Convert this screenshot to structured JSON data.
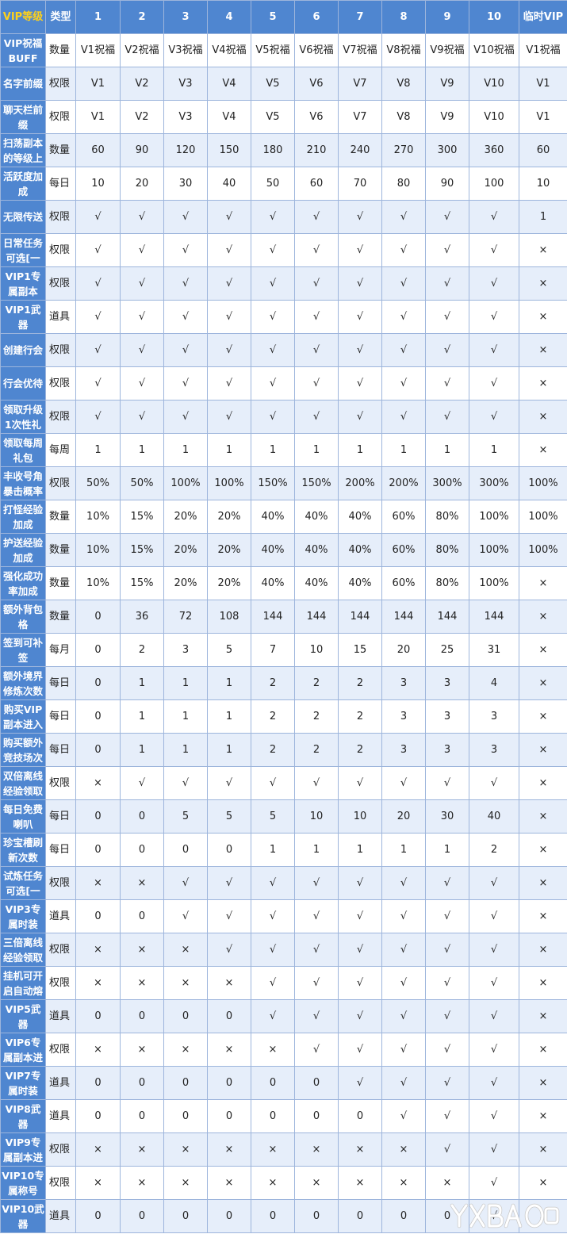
{
  "header": [
    "VIP等级",
    "类型",
    "1",
    "2",
    "3",
    "4",
    "5",
    "6",
    "7",
    "8",
    "9",
    "10",
    "临时VIP"
  ],
  "colors": {
    "header_bg": "#4f86d0",
    "header_first_text": "#ffd11a",
    "row_alt": "#e6eefa",
    "border": "#9db5dc"
  },
  "rows": [
    {
      "name": "VIP祝福BUFF",
      "type": "数量",
      "values": [
        "V1祝福",
        "V2祝福",
        "V3祝福",
        "V4祝福",
        "V5祝福",
        "V6祝福",
        "V7祝福",
        "V8祝福",
        "V9祝福",
        "V10祝福",
        "V1祝福"
      ]
    },
    {
      "name": "名字前缀",
      "type": "权限",
      "values": [
        "V1",
        "V2",
        "V3",
        "V4",
        "V5",
        "V6",
        "V7",
        "V8",
        "V9",
        "V10",
        "V1"
      ]
    },
    {
      "name": "聊天栏前缀",
      "type": "权限",
      "values": [
        "V1",
        "V2",
        "V3",
        "V4",
        "V5",
        "V6",
        "V7",
        "V8",
        "V9",
        "V10",
        "V1"
      ]
    },
    {
      "name": "扫荡副本的等级上",
      "type": "数量",
      "values": [
        "60",
        "90",
        "120",
        "150",
        "180",
        "210",
        "240",
        "270",
        "300",
        "360",
        "60"
      ]
    },
    {
      "name": "活跃度加成",
      "type": "每日",
      "values": [
        "10",
        "20",
        "30",
        "40",
        "50",
        "60",
        "70",
        "80",
        "90",
        "100",
        "10"
      ]
    },
    {
      "name": "无限传送",
      "type": "权限",
      "values": [
        "√",
        "√",
        "√",
        "√",
        "√",
        "√",
        "√",
        "√",
        "√",
        "√",
        "1"
      ]
    },
    {
      "name": "日常任务可选[一",
      "type": "权限",
      "values": [
        "√",
        "√",
        "√",
        "√",
        "√",
        "√",
        "√",
        "√",
        "√",
        "√",
        "×"
      ]
    },
    {
      "name": "VIP1专属副本",
      "type": "权限",
      "values": [
        "√",
        "√",
        "√",
        "√",
        "√",
        "√",
        "√",
        "√",
        "√",
        "√",
        "×"
      ]
    },
    {
      "name": "VIP1武器",
      "type": "道具",
      "values": [
        "√",
        "√",
        "√",
        "√",
        "√",
        "√",
        "√",
        "√",
        "√",
        "√",
        "×"
      ]
    },
    {
      "name": "创建行会",
      "type": "权限",
      "values": [
        "√",
        "√",
        "√",
        "√",
        "√",
        "√",
        "√",
        "√",
        "√",
        "√",
        "×"
      ]
    },
    {
      "name": "行会优待",
      "type": "权限",
      "values": [
        "√",
        "√",
        "√",
        "√",
        "√",
        "√",
        "√",
        "√",
        "√",
        "√",
        "×"
      ]
    },
    {
      "name": "领取升级1次性礼",
      "type": "权限",
      "values": [
        "√",
        "√",
        "√",
        "√",
        "√",
        "√",
        "√",
        "√",
        "√",
        "√",
        "×"
      ]
    },
    {
      "name": "领取每周礼包",
      "type": "每周",
      "values": [
        "1",
        "1",
        "1",
        "1",
        "1",
        "1",
        "1",
        "1",
        "1",
        "1",
        "×"
      ]
    },
    {
      "name": "丰收号角暴击概率",
      "type": "权限",
      "values": [
        "50%",
        "50%",
        "100%",
        "100%",
        "150%",
        "150%",
        "200%",
        "200%",
        "300%",
        "300%",
        "100%"
      ]
    },
    {
      "name": "打怪经验加成",
      "type": "数量",
      "values": [
        "10%",
        "15%",
        "20%",
        "20%",
        "40%",
        "40%",
        "40%",
        "60%",
        "80%",
        "100%",
        "100%"
      ]
    },
    {
      "name": "护送经验加成",
      "type": "数量",
      "values": [
        "10%",
        "15%",
        "20%",
        "20%",
        "40%",
        "40%",
        "40%",
        "60%",
        "80%",
        "100%",
        "100%"
      ]
    },
    {
      "name": "强化成功率加成",
      "type": "数量",
      "values": [
        "10%",
        "15%",
        "20%",
        "20%",
        "40%",
        "40%",
        "40%",
        "60%",
        "80%",
        "100%",
        "×"
      ]
    },
    {
      "name": "额外背包格",
      "type": "数量",
      "values": [
        "0",
        "36",
        "72",
        "108",
        "144",
        "144",
        "144",
        "144",
        "144",
        "144",
        "×"
      ]
    },
    {
      "name": "签到可补签",
      "type": "每月",
      "values": [
        "0",
        "2",
        "3",
        "5",
        "7",
        "10",
        "15",
        "20",
        "25",
        "31",
        "×"
      ]
    },
    {
      "name": "额外境界修炼次数",
      "type": "每日",
      "values": [
        "0",
        "1",
        "1",
        "1",
        "2",
        "2",
        "2",
        "3",
        "3",
        "4",
        "×"
      ]
    },
    {
      "name": "购买VIP副本进入",
      "type": "每日",
      "values": [
        "0",
        "1",
        "1",
        "1",
        "2",
        "2",
        "2",
        "3",
        "3",
        "3",
        "×"
      ]
    },
    {
      "name": "购买额外竞技场次",
      "type": "每日",
      "values": [
        "0",
        "1",
        "1",
        "1",
        "2",
        "2",
        "2",
        "3",
        "3",
        "3",
        "×"
      ]
    },
    {
      "name": "双倍离线经验领取",
      "type": "权限",
      "values": [
        "×",
        "√",
        "√",
        "√",
        "√",
        "√",
        "√",
        "√",
        "√",
        "√",
        "×"
      ]
    },
    {
      "name": "每日免费喇叭",
      "type": "每日",
      "values": [
        "0",
        "0",
        "5",
        "5",
        "5",
        "10",
        "10",
        "20",
        "30",
        "40",
        "×"
      ]
    },
    {
      "name": "珍宝槽刷新次数",
      "type": "每日",
      "values": [
        "0",
        "0",
        "0",
        "0",
        "1",
        "1",
        "1",
        "1",
        "1",
        "2",
        "×"
      ]
    },
    {
      "name": "试炼任务可选[一",
      "type": "权限",
      "values": [
        "×",
        "×",
        "√",
        "√",
        "√",
        "√",
        "√",
        "√",
        "√",
        "√",
        "×"
      ]
    },
    {
      "name": "VIP3专属时装",
      "type": "道具",
      "values": [
        "0",
        "0",
        "√",
        "√",
        "√",
        "√",
        "√",
        "√",
        "√",
        "√",
        "×"
      ]
    },
    {
      "name": "三倍离线经验领取",
      "type": "权限",
      "values": [
        "×",
        "×",
        "×",
        "√",
        "√",
        "√",
        "√",
        "√",
        "√",
        "√",
        "×"
      ]
    },
    {
      "name": "挂机可开启自动熔",
      "type": "权限",
      "values": [
        "×",
        "×",
        "×",
        "×",
        "√",
        "√",
        "√",
        "√",
        "√",
        "√",
        "×"
      ]
    },
    {
      "name": "VIP5武器",
      "type": "道具",
      "values": [
        "0",
        "0",
        "0",
        "0",
        "√",
        "√",
        "√",
        "√",
        "√",
        "√",
        "×"
      ]
    },
    {
      "name": "VIP6专属副本进",
      "type": "权限",
      "values": [
        "×",
        "×",
        "×",
        "×",
        "×",
        "√",
        "√",
        "√",
        "√",
        "√",
        "×"
      ]
    },
    {
      "name": "VIP7专属时装",
      "type": "道具",
      "values": [
        "0",
        "0",
        "0",
        "0",
        "0",
        "0",
        "√",
        "√",
        "√",
        "√",
        "×"
      ]
    },
    {
      "name": "VIP8武器",
      "type": "道具",
      "values": [
        "0",
        "0",
        "0",
        "0",
        "0",
        "0",
        "0",
        "√",
        "√",
        "√",
        "×"
      ]
    },
    {
      "name": "VIP9专属副本进",
      "type": "权限",
      "values": [
        "×",
        "×",
        "×",
        "×",
        "×",
        "×",
        "×",
        "×",
        "√",
        "√",
        "×"
      ]
    },
    {
      "name": "VIP10专属称号",
      "type": "权限",
      "values": [
        "×",
        "×",
        "×",
        "×",
        "×",
        "×",
        "×",
        "×",
        "×",
        "√",
        "×"
      ]
    },
    {
      "name": "VIP10武器",
      "type": "道具",
      "values": [
        "0",
        "0",
        "0",
        "0",
        "0",
        "0",
        "0",
        "0",
        "0",
        "√",
        "×"
      ]
    }
  ],
  "watermark": "YXBAO"
}
